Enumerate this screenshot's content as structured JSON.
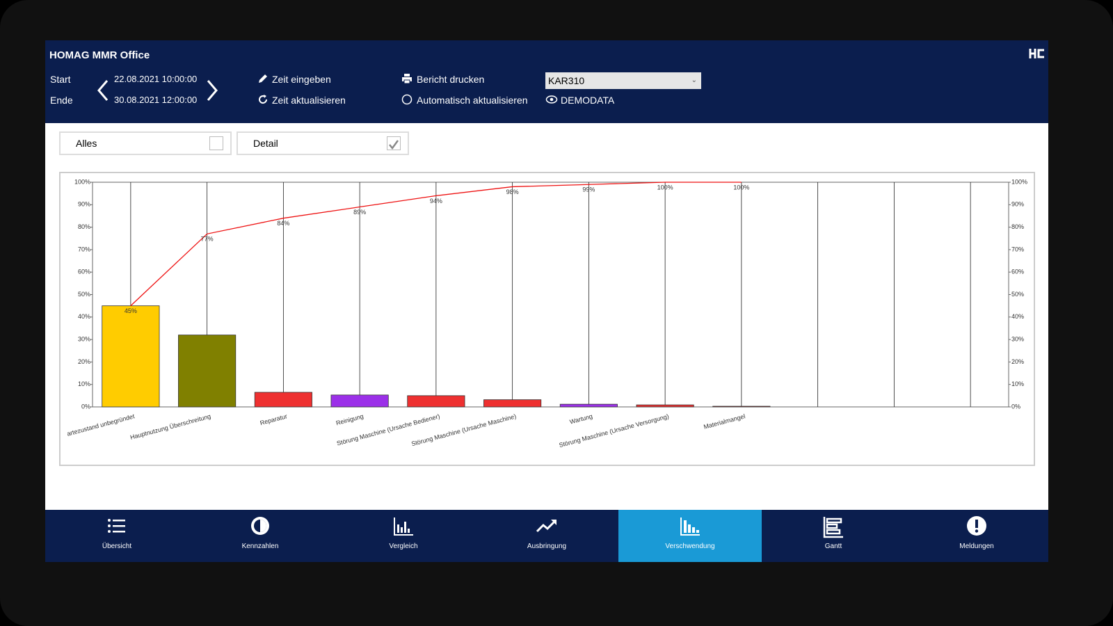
{
  "header": {
    "title": "HOMAG MMR Office",
    "start_label": "Start",
    "end_label": "Ende",
    "start": "22.08.2021 10:00:00",
    "end": "30.08.2021 12:00:00",
    "actions": [
      "Zeit eingeben",
      "Zeit aktualisieren",
      "Bericht drucken",
      "Automatisch aktualisieren"
    ],
    "machine": "KAR310",
    "data_source": "DEMODATA"
  },
  "filters": [
    {
      "label": "Alles",
      "checked": false
    },
    {
      "label": "Detail",
      "checked": true
    }
  ],
  "chart_data": {
    "type": "bar",
    "categories": [
      "artezustand unbegründet",
      "Hauptnutzung Überschreitung",
      "Reparatur",
      "Reinigung",
      "Störung Maschine (Ursache Bediener)",
      "Störung Maschine (Ursache Maschine)",
      "Wartung",
      "Störung Maschine (Ursache Versorgung)",
      "Materialmangel",
      null,
      null,
      null
    ],
    "values": [
      45,
      32,
      6.5,
      5.3,
      5,
      3.2,
      1.2,
      0.9,
      0.3,
      null,
      null,
      null
    ],
    "colors": [
      "#ffcc00",
      "#808000",
      "#ee3030",
      "#9b30e8",
      "#ee3030",
      "#ee3030",
      "#9b30e8",
      "#ee3030",
      "#ee3030",
      null,
      null,
      null
    ],
    "ylim": [
      0,
      100
    ],
    "yticks": [
      {
        "value": 0,
        "label": "0%"
      },
      {
        "value": 10,
        "label": "10%"
      },
      {
        "value": 20,
        "label": "20%"
      },
      {
        "value": 30,
        "label": "30%"
      },
      {
        "value": 40,
        "label": "40%"
      },
      {
        "value": 50,
        "label": "50%"
      },
      {
        "value": 60,
        "label": "60%"
      },
      {
        "value": 70,
        "label": "70%"
      },
      {
        "value": 80,
        "label": "80%"
      },
      {
        "value": 90,
        "label": "90%"
      },
      {
        "value": 100,
        "label": "100%"
      }
    ],
    "y2lim": [
      0,
      100
    ],
    "y2ticks": [
      {
        "value": 0,
        "label": "0%"
      },
      {
        "value": 10,
        "label": "10%"
      },
      {
        "value": 20,
        "label": "20%"
      },
      {
        "value": 30,
        "label": "30%"
      },
      {
        "value": 40,
        "label": "40%"
      },
      {
        "value": 50,
        "label": "50%"
      },
      {
        "value": 60,
        "label": "60%"
      },
      {
        "value": 70,
        "label": "70%"
      },
      {
        "value": 80,
        "label": "80%"
      },
      {
        "value": 90,
        "label": "90%"
      },
      {
        "value": 100,
        "label": "100%"
      }
    ],
    "line": {
      "type": "line",
      "axis": "y2",
      "color": "#ee1111",
      "values": [
        45,
        77,
        84,
        89,
        94,
        98,
        99,
        100,
        100,
        null,
        null,
        null
      ],
      "value_labels": [
        "45%",
        "77%",
        "84%",
        "89%",
        "94%",
        "98%",
        "99%",
        "100%",
        "100%",
        null,
        null,
        null
      ]
    }
  },
  "nav": {
    "items": [
      "Übersicht",
      "Kennzahlen",
      "Vergleich",
      "Ausbringung",
      "Verschwendung",
      "Gantt",
      "Meldungen"
    ],
    "active": 4
  }
}
